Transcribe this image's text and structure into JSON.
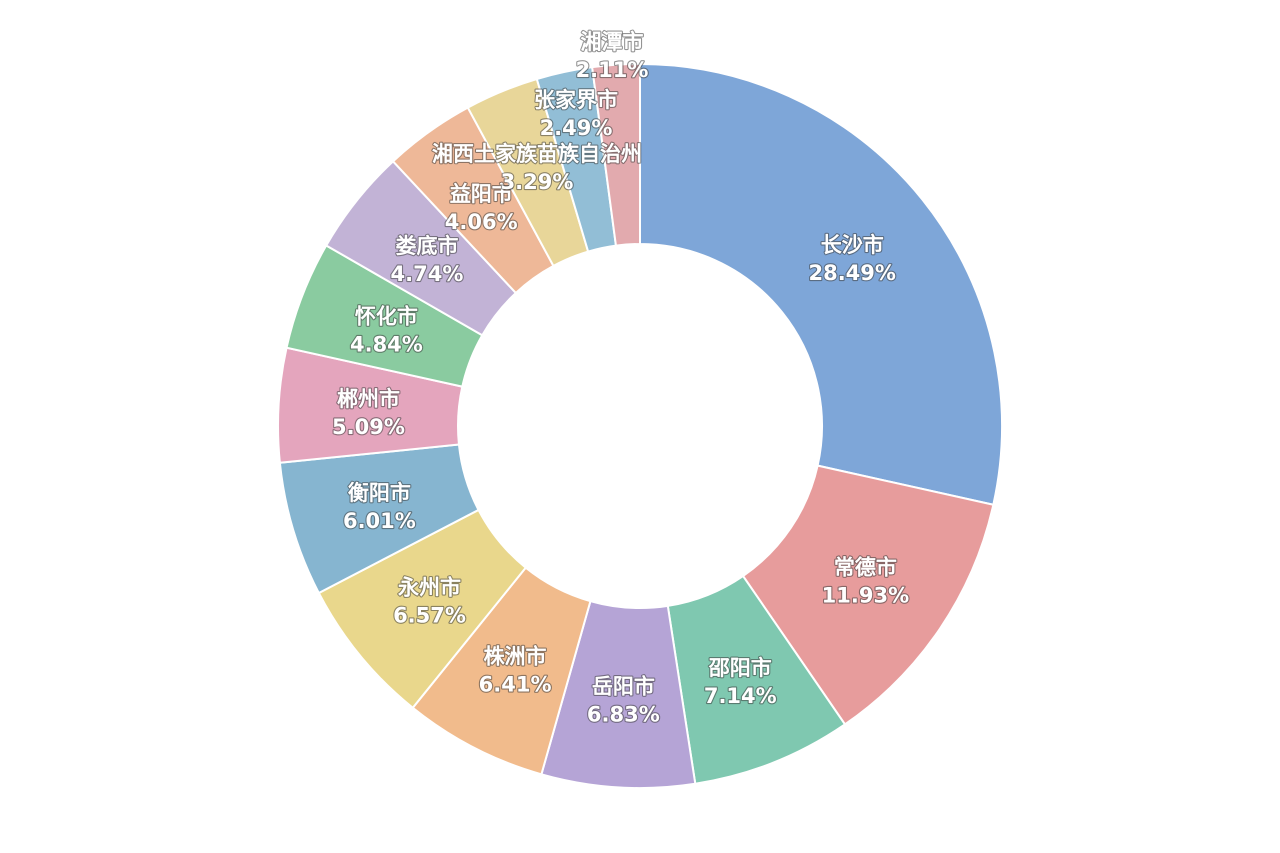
{
  "chart_data": {
    "type": "pie",
    "title": "",
    "series": [
      {
        "name": "长沙市",
        "value": 28.49,
        "label": "28.49%",
        "color": "#7EA6D8"
      },
      {
        "name": "常德市",
        "value": 11.93,
        "label": "11.93%",
        "color": "#E79C9C"
      },
      {
        "name": "邵阳市",
        "value": 7.14,
        "label": "7.14%",
        "color": "#7FC8B0"
      },
      {
        "name": "岳阳市",
        "value": 6.83,
        "label": "6.83%",
        "color": "#B5A4D6"
      },
      {
        "name": "株洲市",
        "value": 6.41,
        "label": "6.41%",
        "color": "#F1BB8C"
      },
      {
        "name": "永州市",
        "value": 6.57,
        "label": "6.57%",
        "color": "#E9D78C"
      },
      {
        "name": "衡阳市",
        "value": 6.01,
        "label": "6.01%",
        "color": "#86B5D0"
      },
      {
        "name": "郴州市",
        "value": 5.09,
        "label": "5.09%",
        "color": "#E4A5BD"
      },
      {
        "name": "怀化市",
        "value": 4.84,
        "label": "4.84%",
        "color": "#8ACBA0"
      },
      {
        "name": "娄底市",
        "value": 4.74,
        "label": "4.74%",
        "color": "#C2B3D6"
      },
      {
        "name": "益阳市",
        "value": 4.06,
        "label": "4.06%",
        "color": "#EEB898"
      },
      {
        "name": "湘西土家族苗族自治州",
        "value": 3.29,
        "label": "3.29%",
        "color": "#E8D699"
      },
      {
        "name": "张家界市",
        "value": 2.49,
        "label": "2.49%",
        "color": "#92BED6"
      },
      {
        "name": "湘潭市",
        "value": 2.11,
        "label": "2.11%",
        "color": "#E2AAAE"
      }
    ]
  }
}
